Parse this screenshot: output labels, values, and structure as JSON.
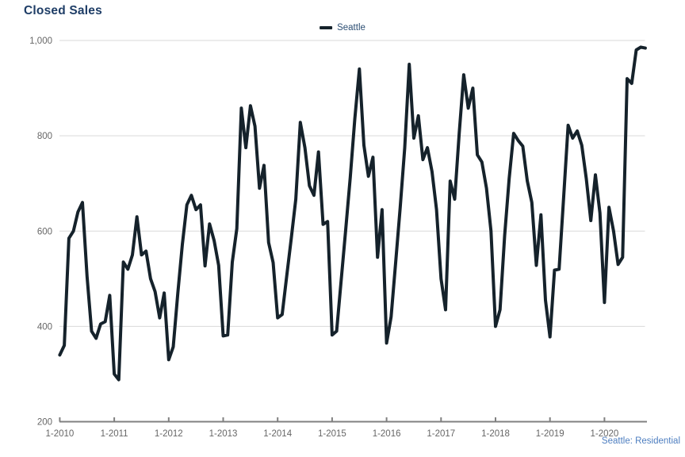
{
  "title": "Closed Sales",
  "legend": {
    "items": [
      {
        "label": "Seattle",
        "color": "#15222b"
      }
    ]
  },
  "footer": {
    "label": "Seattle: Residential"
  },
  "colors": {
    "line": "#15222b",
    "title": "#1e3d66",
    "legend_text": "#2d4f74",
    "axis_text": "#666666",
    "gridline": "#d9d9d9",
    "axis_line": "#808080",
    "footer_text": "#4d7ec0",
    "background": "#ffffff"
  },
  "chart_data": {
    "type": "line",
    "title": "Closed Sales",
    "x_start": "2010-01",
    "x_end": "2020-10",
    "x_frequency": "monthly",
    "x_tick_labels": [
      "1-2010",
      "1-2011",
      "1-2012",
      "1-2013",
      "1-2014",
      "1-2015",
      "1-2016",
      "1-2017",
      "1-2018",
      "1-2019",
      "1-2020"
    ],
    "y_ticks": [
      200,
      400,
      600,
      800,
      1000
    ],
    "y_tick_labels": [
      "200",
      "400",
      "600",
      "800",
      "1,000"
    ],
    "ylim": [
      200,
      1000
    ],
    "grid": true,
    "legend_position": "top-center",
    "series": [
      {
        "name": "Seattle",
        "values": [
          340,
          360,
          585,
          600,
          640,
          660,
          505,
          390,
          375,
          405,
          410,
          465,
          300,
          288,
          535,
          520,
          550,
          630,
          550,
          558,
          500,
          473,
          418,
          470,
          330,
          357,
          470,
          572,
          655,
          675,
          645,
          655,
          527,
          615,
          580,
          528,
          380,
          382,
          535,
          605,
          858,
          775,
          863,
          820,
          690,
          738,
          576,
          534,
          418,
          425,
          505,
          585,
          667,
          828,
          775,
          695,
          675,
          766,
          614,
          620,
          382,
          390,
          498,
          604,
          713,
          835,
          940,
          780,
          715,
          755,
          545,
          645,
          365,
          420,
          535,
          650,
          775,
          950,
          795,
          842,
          750,
          775,
          725,
          645,
          500,
          435,
          705,
          667,
          805,
          928,
          858,
          900,
          760,
          745,
          690,
          600,
          400,
          435,
          590,
          710,
          805,
          790,
          778,
          705,
          660,
          528,
          634,
          455,
          378,
          518,
          520,
          670,
          822,
          795,
          810,
          780,
          710,
          622,
          718,
          638,
          450,
          650,
          600,
          530,
          545,
          920,
          910,
          980,
          986,
          984
        ]
      }
    ]
  }
}
